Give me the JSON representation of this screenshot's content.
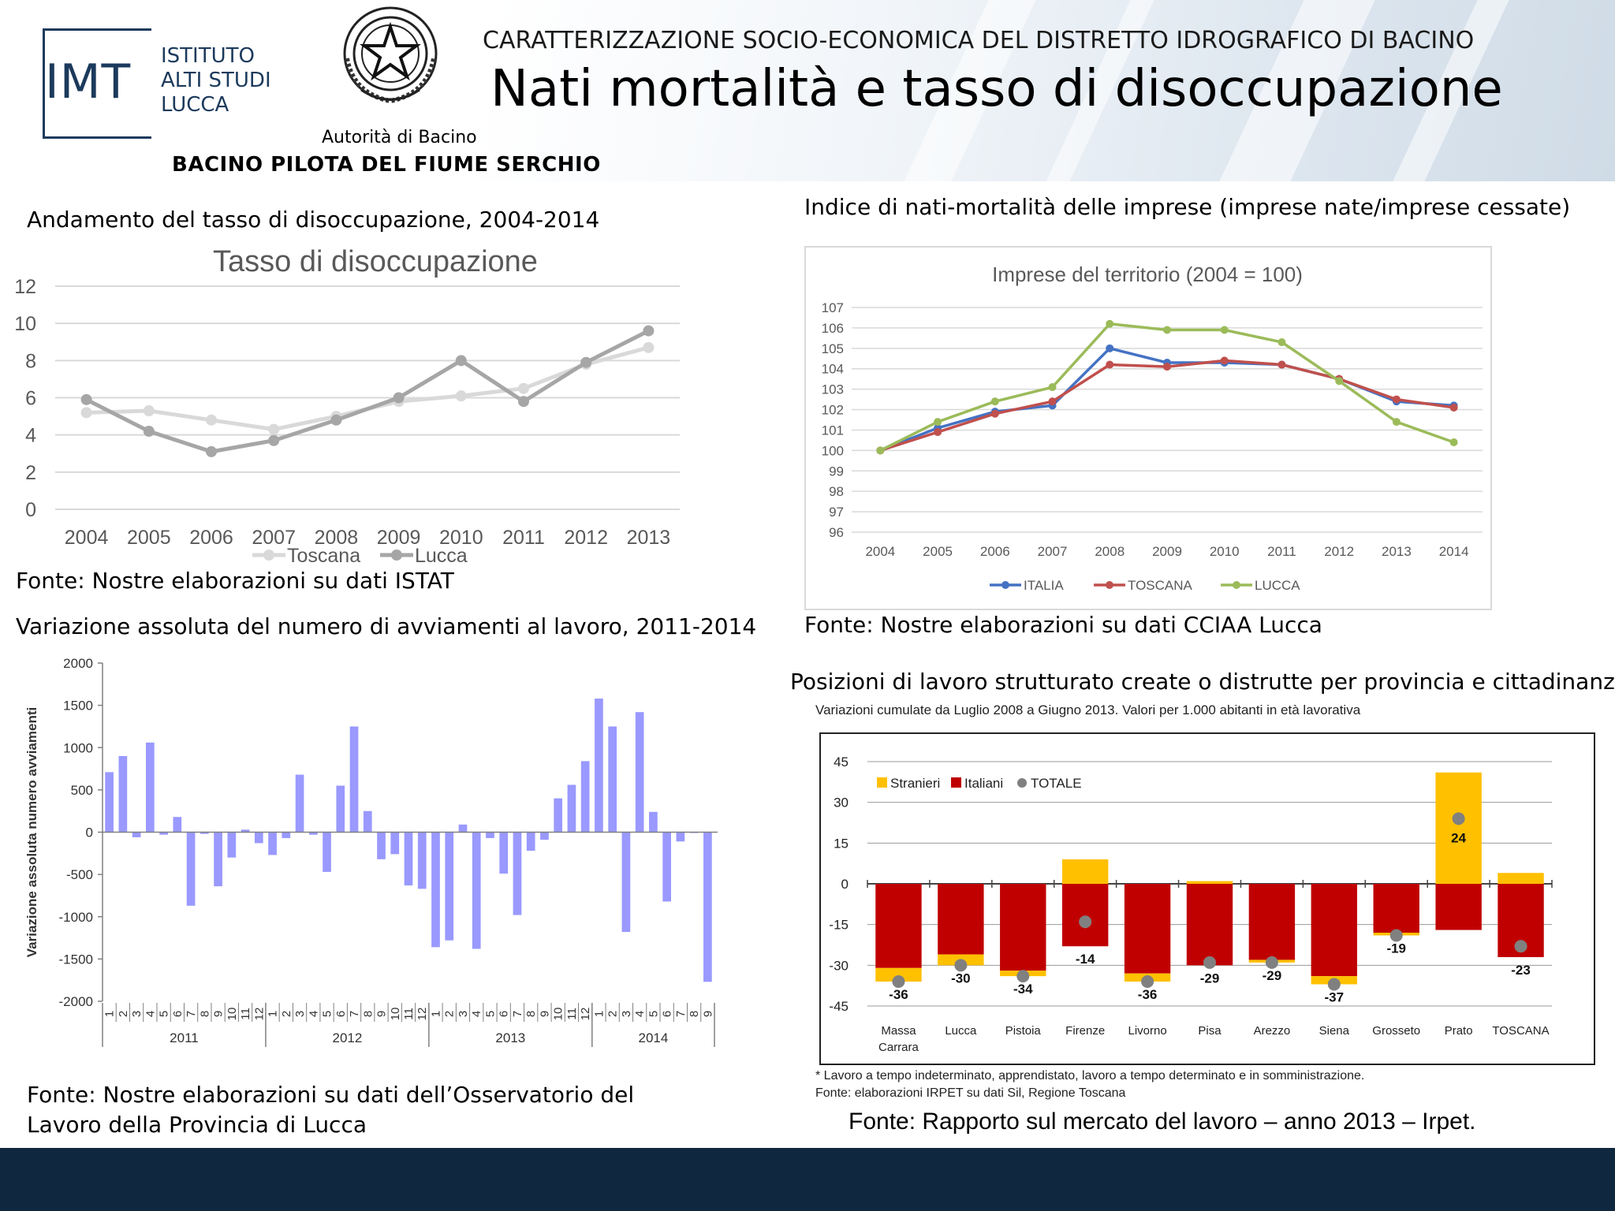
{
  "header": {
    "logo_text": "IMT",
    "institute_lines": [
      "ISTITUTO",
      "ALTI STUDI",
      "LUCCA"
    ],
    "emblem_caption": "Autorità di Bacino",
    "basin_title": "BACINO PILOTA DEL FIUME SERCHIO",
    "subtitle": "CARATTERIZZAZIONE SOCIO-ECONOMICA DEL DISTRETTO IDROGRAFICO DI BACINO",
    "title": "Nati mortalità e tasso di disoccupazione",
    "emblem_icon": "emblem-star-icon"
  },
  "sections": {
    "unemployment": {
      "heading": "Andamento del tasso di disoccupazione, 2004-2014",
      "source": "Fonte: Nostre elaborazioni su dati ISTAT"
    },
    "enterprises": {
      "heading": "Indice di nati-mortalità delle imprese (imprese nate/imprese cessate)",
      "source": "Fonte: Nostre elaborazioni su dati CCIAA Lucca"
    },
    "hirings": {
      "heading": "Variazione assoluta del numero di avviamenti al lavoro, 2011-2014",
      "source_lines": [
        "Fonte: Nostre elaborazioni su dati dell’Osservatorio del",
        "Lavoro della Provincia di Lucca"
      ]
    },
    "positions": {
      "heading": "Posizioni di lavoro strutturato create o distrutte per provincia e cittadinanza.",
      "source": "Fonte: Rapporto sul mercato del lavoro – anno 2013 – Irpet."
    }
  },
  "colors": {
    "toscana_line": "#d9d9d9",
    "lucca_line": "#a6a6a6",
    "italia": "#4472c4",
    "toscana_red": "#c0504d",
    "lucca_green": "#9bbb59",
    "bars_blue": "#9999ff",
    "stranieri": "#ffc000",
    "italiani": "#c00000",
    "totale": "#808080",
    "footer": "#0f2840"
  },
  "chart_data": [
    {
      "id": "unemployment",
      "type": "line",
      "title": "Tasso di disoccupazione",
      "categories": [
        "2004",
        "2005",
        "2006",
        "2007",
        "2008",
        "2009",
        "2010",
        "2011",
        "2012",
        "2013"
      ],
      "ylim": [
        0,
        12
      ],
      "yticks": [
        "0",
        "2",
        "4",
        "6",
        "8",
        "10",
        "12"
      ],
      "grid": true,
      "legend": "bottom",
      "series": [
        {
          "name": "Toscana",
          "values": [
            5.2,
            5.3,
            4.8,
            4.3,
            5.0,
            5.8,
            6.1,
            6.5,
            7.8,
            8.7
          ]
        },
        {
          "name": "Lucca",
          "values": [
            5.9,
            4.2,
            3.1,
            3.7,
            4.8,
            6.0,
            8.0,
            5.8,
            7.9,
            9.6
          ]
        }
      ]
    },
    {
      "id": "enterprises",
      "type": "line",
      "title": "Imprese del territorio (2004 = 100)",
      "categories": [
        "2004",
        "2005",
        "2006",
        "2007",
        "2008",
        "2009",
        "2010",
        "2011",
        "2012",
        "2013",
        "2014"
      ],
      "ylim": [
        96,
        107
      ],
      "yticks": [
        "96",
        "97",
        "98",
        "99",
        "100",
        "101",
        "102",
        "103",
        "104",
        "105",
        "106",
        "107"
      ],
      "grid": true,
      "legend": "bottom",
      "series": [
        {
          "name": "ITALIA",
          "values": [
            100.0,
            101.1,
            101.9,
            102.2,
            105.0,
            104.3,
            104.3,
            104.2,
            103.5,
            102.4,
            102.2
          ]
        },
        {
          "name": "TOSCANA",
          "values": [
            100.0,
            100.9,
            101.8,
            102.4,
            104.2,
            104.1,
            104.4,
            104.2,
            103.5,
            102.5,
            102.1
          ]
        },
        {
          "name": "LUCCA",
          "values": [
            100.0,
            101.4,
            102.4,
            103.1,
            106.2,
            105.9,
            105.9,
            105.3,
            103.4,
            101.4,
            100.4
          ]
        }
      ]
    },
    {
      "id": "hirings",
      "type": "bar",
      "ylabel": "Variazione assoluta numero avviamenti",
      "ylim": [
        -2000,
        2000
      ],
      "yticks": [
        "2000",
        "1500",
        "1000",
        "500",
        "0",
        "-500",
        "-1000",
        "-1500",
        "-2000"
      ],
      "years": [
        "2011",
        "2012",
        "2013",
        "2014"
      ],
      "months": [
        "1",
        "2",
        "3",
        "4",
        "5",
        "6",
        "7",
        "8",
        "9",
        "10",
        "11",
        "12",
        "1",
        "2",
        "3",
        "4",
        "5",
        "6",
        "7",
        "8",
        "9",
        "10",
        "11",
        "12",
        "1",
        "2",
        "3",
        "4",
        "5",
        "6",
        "7",
        "8",
        "9",
        "10",
        "11",
        "12",
        "1",
        "2",
        "3",
        "4",
        "5",
        "6",
        "7",
        "8",
        "9"
      ],
      "values": [
        710,
        900,
        -60,
        1060,
        -30,
        180,
        -870,
        -20,
        -640,
        -300,
        30,
        -130,
        -270,
        -70,
        680,
        -30,
        -470,
        550,
        1250,
        250,
        -320,
        -260,
        -630,
        -670,
        -1360,
        -1280,
        90,
        -1380,
        -70,
        -490,
        -980,
        -220,
        -90,
        400,
        560,
        840,
        1580,
        1250,
        -1180,
        1420,
        240,
        -820,
        -110,
        -10,
        -1770
      ]
    },
    {
      "id": "positions",
      "type": "bar",
      "title": "Variazioni cumulate da Luglio 2008 a Giugno 2013. Valori per 1.000 abitanti in età lavorativa",
      "ylim": [
        -45,
        45
      ],
      "yticks": [
        "45",
        "30",
        "15",
        "0",
        "-15",
        "-30",
        "-45"
      ],
      "legend": "top-left",
      "categories": [
        "Massa\nCarrara",
        "Lucca",
        "Pistoia",
        "Firenze",
        "Livorno",
        "Pisa",
        "Arezzo",
        "Siena",
        "Grosseto",
        "Prato",
        "TOSCANA"
      ],
      "series": [
        {
          "name": "Stranieri",
          "values": [
            -5,
            -4,
            -2,
            9,
            -3,
            1,
            -1,
            -3,
            -1,
            41,
            4
          ]
        },
        {
          "name": "Italiani",
          "values": [
            -31,
            -26,
            -32,
            -23,
            -33,
            -30,
            -28,
            -34,
            -18,
            -17,
            -27
          ]
        },
        {
          "name": "TOTALE",
          "values": [
            -36,
            -30,
            -34,
            -14,
            -36,
            -29,
            -29,
            -37,
            -19,
            24,
            -23
          ]
        }
      ],
      "total_labels": [
        "-36",
        "-30",
        "-34",
        "-14",
        "-36",
        "-29",
        "-29",
        "-37",
        "-19",
        "24",
        "-23"
      ],
      "notes": [
        "* Lavoro a tempo indeterminato, apprendistato, lavoro a tempo determinato e in somministrazione.",
        "Fonte: elaborazioni IRPET su dati Sil, Regione Toscana"
      ]
    }
  ]
}
